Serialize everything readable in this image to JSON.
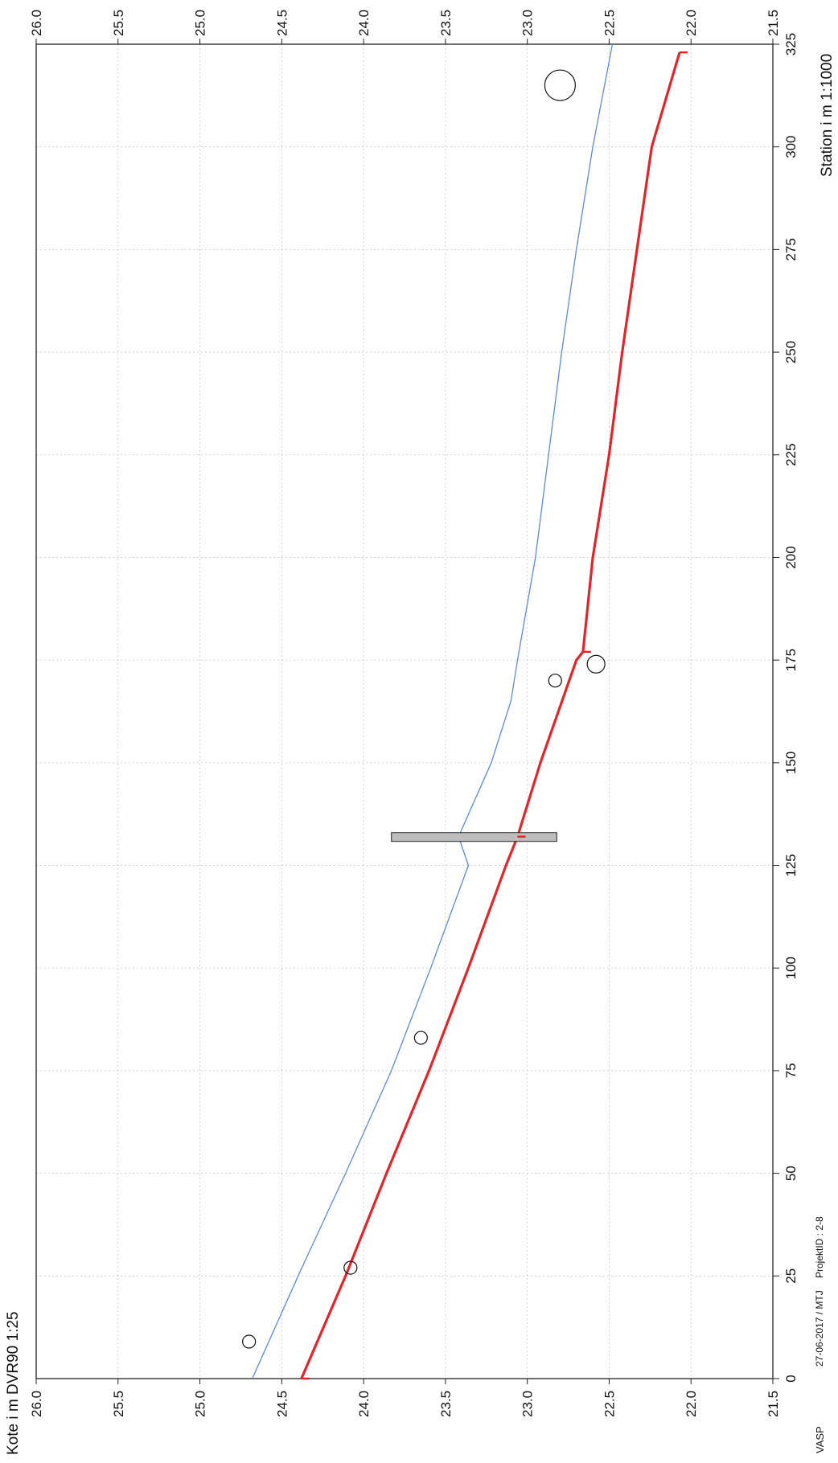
{
  "page": {
    "footer_brand": "VASP",
    "footer_date": "27-06-2017 / MTJ",
    "footer_project": "ProjektID : 2-8"
  },
  "chart_data": {
    "type": "line",
    "orientation": "rotated-90-clockwise",
    "xlabel": "Station i m 1:1000",
    "ylabel": "Kote i m DVR90 1:25",
    "xlim": [
      0,
      325
    ],
    "ylim": [
      21.5,
      26.0
    ],
    "x_ticks": [
      0,
      25,
      50,
      75,
      100,
      125,
      150,
      175,
      200,
      225,
      250,
      275,
      300,
      325
    ],
    "y_ticks": [
      "21.5",
      "22.0",
      "22.5",
      "23.0",
      "23.5",
      "24.0",
      "24.5",
      "25.0",
      "25.5",
      "26.0"
    ],
    "grid": true,
    "colors": {
      "terrain": "#5b8ad6",
      "pipe": "#e0262b",
      "axis": "#222222",
      "grid": "#c7c7c7",
      "manhole_fill": "#bdbdbd"
    },
    "series": [
      {
        "key": "terrain",
        "x": [
          0,
          25,
          50,
          75,
          100,
          125,
          132,
          150,
          165,
          175,
          200,
          225,
          250,
          275,
          300,
          325
        ],
        "y": [
          24.68,
          24.4,
          24.11,
          23.83,
          23.59,
          23.36,
          23.42,
          23.22,
          23.1,
          23.06,
          22.95,
          22.87,
          22.79,
          22.7,
          22.6,
          22.48
        ]
      },
      {
        "key": "pipe",
        "x": [
          0,
          25,
          50,
          75,
          100,
          125,
          132,
          150,
          175,
          177,
          200,
          225,
          250,
          275,
          300,
          323
        ],
        "y": [
          24.38,
          24.11,
          23.86,
          23.6,
          23.36,
          23.13,
          23.06,
          22.92,
          22.7,
          22.66,
          22.6,
          22.5,
          22.42,
          22.33,
          22.24,
          22.07
        ]
      }
    ],
    "markers": [
      {
        "x": 9,
        "y": 24.7,
        "size": "small"
      },
      {
        "x": 27,
        "y": 24.08,
        "size": "small"
      },
      {
        "x": 83,
        "y": 23.65,
        "size": "small"
      },
      {
        "x": 170,
        "y": 22.83,
        "size": "small"
      },
      {
        "x": 174,
        "y": 22.58,
        "size": "medium"
      },
      {
        "x": 315,
        "y": 22.8,
        "size": "large"
      }
    ],
    "manhole": {
      "x": 132,
      "y_top": 23.83,
      "y_bottom": 22.82
    },
    "pipe_ticks": [
      {
        "x": 0,
        "y": 24.38
      },
      {
        "x": 132,
        "y": 23.06
      },
      {
        "x": 177,
        "y": 22.66
      },
      {
        "x": 323,
        "y": 22.07
      }
    ]
  }
}
